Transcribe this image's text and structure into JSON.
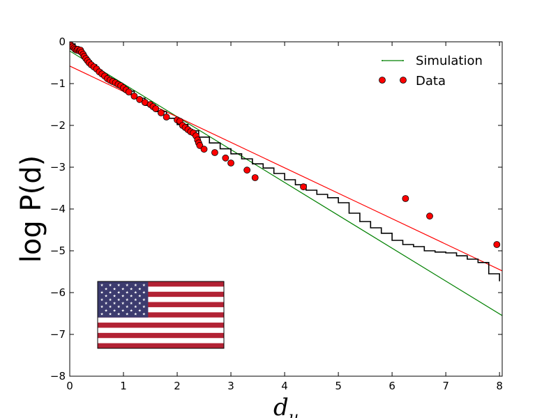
{
  "chart_data": {
    "type": "scatter",
    "xlabel": "d",
    "xlabel_sub": "u",
    "ylabel": "log P(d)",
    "xlim": [
      0,
      8.05
    ],
    "ylim": [
      -8,
      0
    ],
    "xticks": [
      0,
      1,
      2,
      3,
      4,
      5,
      6,
      7,
      8
    ],
    "yticks": [
      0,
      -1,
      -2,
      -3,
      -4,
      -5,
      -6,
      -7,
      -8
    ],
    "xtick_labels": [
      "0",
      "1",
      "2",
      "3",
      "4",
      "5",
      "6",
      "7",
      "8"
    ],
    "ytick_labels": [
      "0",
      "−1",
      "−2",
      "−3",
      "−4",
      "−5",
      "−6",
      "−7",
      "−8"
    ],
    "grid": false,
    "legend": {
      "position": "top-right",
      "entries": [
        {
          "label": "Simulation",
          "marker": "line",
          "color": "#008000"
        },
        {
          "label": "Data",
          "marker": "circle",
          "color": "#ff0000"
        }
      ]
    },
    "series": [
      {
        "name": "Simulation",
        "kind": "step-line",
        "color": "#000000",
        "x": [
          0.0,
          0.1,
          0.2,
          0.3,
          0.4,
          0.5,
          0.6,
          0.7,
          0.8,
          0.9,
          1.0,
          1.2,
          1.4,
          1.6,
          1.8,
          2.0,
          2.2,
          2.4,
          2.6,
          2.8,
          3.0,
          3.2,
          3.4,
          3.6,
          3.8,
          4.0,
          4.2,
          4.4,
          4.6,
          4.8,
          5.0,
          5.2,
          5.4,
          5.6,
          5.8,
          6.0,
          6.2,
          6.4,
          6.6,
          6.8,
          7.0,
          7.2,
          7.4,
          7.6,
          7.8,
          8.0
        ],
        "y": [
          -0.05,
          -0.15,
          -0.3,
          -0.45,
          -0.55,
          -0.68,
          -0.78,
          -0.88,
          -0.98,
          -1.08,
          -1.18,
          -1.35,
          -1.52,
          -1.67,
          -1.83,
          -1.98,
          -2.13,
          -2.28,
          -2.42,
          -2.56,
          -2.68,
          -2.8,
          -2.92,
          -3.02,
          -3.15,
          -3.3,
          -3.42,
          -3.55,
          -3.65,
          -3.73,
          -3.85,
          -4.1,
          -4.3,
          -4.45,
          -4.58,
          -4.75,
          -4.85,
          -4.9,
          -5.0,
          -5.03,
          -5.05,
          -5.12,
          -5.2,
          -5.28,
          -5.55,
          -5.73
        ]
      },
      {
        "name": "Data",
        "kind": "scatter",
        "color": "#ff0000",
        "x": [
          0.02,
          0.05,
          0.08,
          0.1,
          0.13,
          0.15,
          0.18,
          0.2,
          0.22,
          0.25,
          0.27,
          0.3,
          0.33,
          0.36,
          0.4,
          0.45,
          0.5,
          0.55,
          0.6,
          0.65,
          0.7,
          0.75,
          0.8,
          0.85,
          0.9,
          0.95,
          1.0,
          1.05,
          1.1,
          1.2,
          1.3,
          1.4,
          1.5,
          1.55,
          1.6,
          1.7,
          1.8,
          2.0,
          2.05,
          2.1,
          2.15,
          2.2,
          2.25,
          2.3,
          2.35,
          2.38,
          2.4,
          2.42,
          2.5,
          2.7,
          2.9,
          3.0,
          3.3,
          3.45,
          4.35,
          6.25,
          6.7,
          7.95
        ],
        "y": [
          -0.08,
          -0.12,
          -0.15,
          -0.18,
          -0.2,
          -0.18,
          -0.22,
          -0.2,
          -0.25,
          -0.3,
          -0.35,
          -0.4,
          -0.45,
          -0.5,
          -0.55,
          -0.6,
          -0.65,
          -0.72,
          -0.77,
          -0.82,
          -0.88,
          -0.92,
          -0.95,
          -0.98,
          -1.02,
          -1.05,
          -1.1,
          -1.15,
          -1.2,
          -1.3,
          -1.38,
          -1.45,
          -1.5,
          -1.55,
          -1.6,
          -1.7,
          -1.8,
          -1.87,
          -1.9,
          -2.0,
          -2.05,
          -2.1,
          -2.15,
          -2.18,
          -2.25,
          -2.35,
          -2.42,
          -2.48,
          -2.57,
          -2.65,
          -2.78,
          -2.9,
          -3.07,
          -3.25,
          -3.47,
          -3.75,
          -4.17,
          -4.85
        ]
      },
      {
        "name": "Simulation fit",
        "kind": "line",
        "color": "#008000",
        "x": [
          0,
          8.05
        ],
        "y": [
          -0.22,
          -6.55
        ]
      },
      {
        "name": "Data fit",
        "kind": "line",
        "color": "#ff0000",
        "x": [
          0,
          8.05
        ],
        "y": [
          -0.58,
          -5.48
        ]
      }
    ],
    "inset": {
      "icon": "us-flag-icon",
      "colors": {
        "red": "#b22234",
        "white": "#ffffff",
        "blue": "#3c3b6e"
      }
    }
  }
}
